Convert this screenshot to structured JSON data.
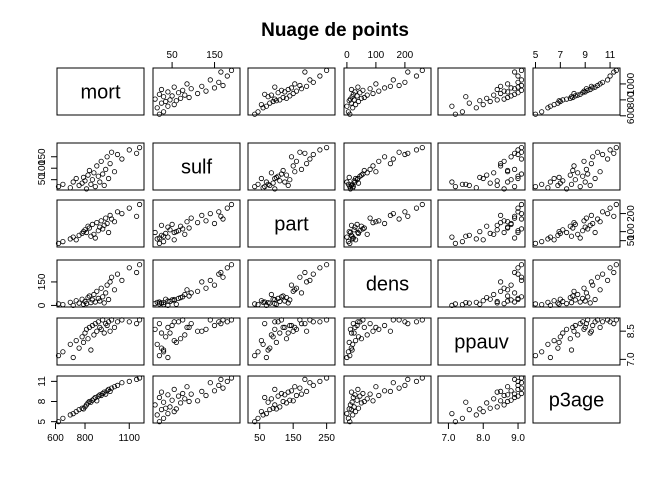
{
  "chart_data": {
    "type": "scatter-matrix",
    "title": "Nuage de points",
    "variables": [
      "mort",
      "sulf",
      "part",
      "dens",
      "ppauv",
      "p3age"
    ],
    "ranges": {
      "mort": [
        610,
        1200
      ],
      "sulf": [
        5,
        210
      ],
      "part": [
        15,
        275
      ],
      "dens": [
        -10,
        290
      ],
      "ppauv": [
        6.7,
        9.2
      ],
      "p3age": [
        4.8,
        11.8
      ]
    },
    "ticks": {
      "mort": [
        600,
        800,
        1100
      ],
      "sulf": [
        50,
        150
      ],
      "part": [
        50,
        150,
        250
      ],
      "dens": [
        0,
        100,
        200
      ],
      "ppauv": [
        7.0,
        8.0,
        9.0
      ],
      "p3age": [
        5,
        7,
        9,
        11
      ]
    },
    "tick_labels": {
      "mort_bottom": [
        "600",
        "800",
        "1100"
      ],
      "mort_right": [
        "600",
        "800",
        "1000"
      ],
      "sulf_top": [
        "50",
        "150"
      ],
      "sulf_left": [
        "50",
        "100",
        "150"
      ],
      "part_bottom": [
        "50",
        "150",
        "250"
      ],
      "part_right": [
        "50",
        "100",
        "200"
      ],
      "dens_top": [
        "0",
        "100",
        "200"
      ],
      "dens_left": [
        "0",
        "150"
      ],
      "ppauv_bottom": [
        "7.0",
        "8.0",
        "9.0"
      ],
      "ppauv_right": [
        "7.0",
        "8.5"
      ],
      "p3age_top": [
        "5",
        "7",
        "9",
        "11"
      ],
      "p3age_left": [
        "5",
        "8",
        "11"
      ]
    },
    "observations": [
      {
        "mort": 620,
        "sulf": 20,
        "part": 35,
        "dens": 10,
        "ppauv": 7.2,
        "p3age": 5.0
      },
      {
        "mort": 650,
        "sulf": 30,
        "part": 45,
        "dens": 5,
        "ppauv": 7.4,
        "p3age": 5.5
      },
      {
        "mort": 700,
        "sulf": 15,
        "part": 60,
        "dens": 20,
        "ppauv": 7.8,
        "p3age": 6.0
      },
      {
        "mort": 720,
        "sulf": 40,
        "part": 70,
        "dens": 0,
        "ppauv": 7.1,
        "p3age": 6.2
      },
      {
        "mort": 740,
        "sulf": 55,
        "part": 55,
        "dens": 30,
        "ppauv": 8.0,
        "p3age": 6.5
      },
      {
        "mort": 760,
        "sulf": 25,
        "part": 80,
        "dens": 15,
        "ppauv": 7.6,
        "p3age": 6.8
      },
      {
        "mort": 780,
        "sulf": 35,
        "part": 90,
        "dens": 40,
        "ppauv": 8.2,
        "p3age": 7.0
      },
      {
        "mort": 790,
        "sulf": 60,
        "part": 100,
        "dens": 8,
        "ppauv": 7.9,
        "p3age": 6.9
      },
      {
        "mort": 800,
        "sulf": 45,
        "part": 110,
        "dens": 25,
        "ppauv": 8.4,
        "p3age": 7.2
      },
      {
        "mort": 810,
        "sulf": 10,
        "part": 95,
        "dens": 12,
        "ppauv": 8.6,
        "p3age": 7.5
      },
      {
        "mort": 820,
        "sulf": 70,
        "part": 130,
        "dens": 50,
        "ppauv": 8.1,
        "p3age": 7.8
      },
      {
        "mort": 830,
        "sulf": 90,
        "part": 120,
        "dens": 60,
        "ppauv": 8.7,
        "p3age": 8.0
      },
      {
        "mort": 840,
        "sulf": 30,
        "part": 75,
        "dens": 18,
        "ppauv": 7.5,
        "p3age": 7.9
      },
      {
        "mort": 850,
        "sulf": 50,
        "part": 140,
        "dens": 35,
        "ppauv": 8.8,
        "p3age": 8.2
      },
      {
        "mort": 860,
        "sulf": 80,
        "part": 85,
        "dens": 70,
        "ppauv": 8.3,
        "p3age": 8.4
      },
      {
        "mort": 870,
        "sulf": 20,
        "part": 65,
        "dens": 22,
        "ppauv": 8.9,
        "p3age": 8.6
      },
      {
        "mort": 880,
        "sulf": 110,
        "part": 150,
        "dens": 90,
        "ppauv": 8.5,
        "p3age": 8.1
      },
      {
        "mort": 890,
        "sulf": 65,
        "part": 105,
        "dens": 45,
        "ppauv": 9.0,
        "p3age": 8.8
      },
      {
        "mort": 900,
        "sulf": 40,
        "part": 125,
        "dens": 28,
        "ppauv": 8.7,
        "p3age": 9.0
      },
      {
        "mort": 910,
        "sulf": 130,
        "part": 160,
        "dens": 110,
        "ppauv": 8.6,
        "p3age": 8.9
      },
      {
        "mort": 920,
        "sulf": 75,
        "part": 115,
        "dens": 55,
        "ppauv": 9.1,
        "p3age": 9.2
      },
      {
        "mort": 930,
        "sulf": 25,
        "part": 135,
        "dens": 16,
        "ppauv": 8.4,
        "p3age": 9.4
      },
      {
        "mort": 940,
        "sulf": 95,
        "part": 175,
        "dens": 80,
        "ppauv": 8.9,
        "p3age": 9.1
      },
      {
        "mort": 950,
        "sulf": 150,
        "part": 145,
        "dens": 130,
        "ppauv": 8.8,
        "p3age": 9.6
      },
      {
        "mort": 960,
        "sulf": 55,
        "part": 95,
        "dens": 38,
        "ppauv": 9.0,
        "p3age": 9.8
      },
      {
        "mort": 970,
        "sulf": 120,
        "part": 190,
        "dens": 150,
        "ppauv": 8.5,
        "p3age": 9.5
      },
      {
        "mort": 980,
        "sulf": 170,
        "part": 170,
        "dens": 180,
        "ppauv": 9.1,
        "p3age": 10.0
      },
      {
        "mort": 1000,
        "sulf": 85,
        "part": 155,
        "dens": 100,
        "ppauv": 8.7,
        "p3age": 10.2
      },
      {
        "mort": 1020,
        "sulf": 160,
        "part": 210,
        "dens": 200,
        "ppauv": 9.0,
        "p3age": 10.4
      },
      {
        "mort": 1050,
        "sulf": 140,
        "part": 200,
        "dens": 160,
        "ppauv": 9.1,
        "p3age": 10.8
      },
      {
        "mort": 1100,
        "sulf": 180,
        "part": 230,
        "dens": 240,
        "ppauv": 9.0,
        "p3age": 11.0
      },
      {
        "mort": 1150,
        "sulf": 165,
        "part": 185,
        "dens": 210,
        "ppauv": 8.9,
        "p3age": 11.3
      },
      {
        "mort": 1170,
        "sulf": 190,
        "part": 250,
        "dens": 260,
        "ppauv": 9.1,
        "p3age": 11.5
      }
    ]
  }
}
